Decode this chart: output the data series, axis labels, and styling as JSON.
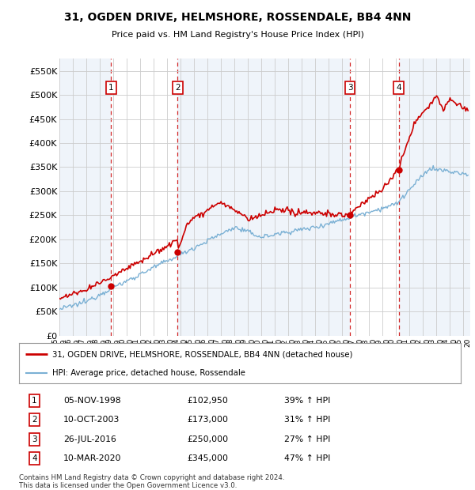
{
  "title": "31, OGDEN DRIVE, HELMSHORE, ROSSENDALE, BB4 4NN",
  "subtitle": "Price paid vs. HM Land Registry's House Price Index (HPI)",
  "ylim": [
    0,
    575000
  ],
  "yticks": [
    0,
    50000,
    100000,
    150000,
    200000,
    250000,
    300000,
    350000,
    400000,
    450000,
    500000,
    550000
  ],
  "xlim_start": 1995.0,
  "xlim_end": 2025.5,
  "background_color": "#ffffff",
  "grid_color": "#cccccc",
  "sale_dates_num": [
    1998.84,
    2003.78,
    2016.57,
    2020.19
  ],
  "sale_prices": [
    102950,
    173000,
    250000,
    345000
  ],
  "sale_labels": [
    "1",
    "2",
    "3",
    "4"
  ],
  "table_rows": [
    {
      "num": "1",
      "date": "05-NOV-1998",
      "price": "£102,950",
      "hpi": "39% ↑ HPI"
    },
    {
      "num": "2",
      "date": "10-OCT-2003",
      "price": "£173,000",
      "hpi": "31% ↑ HPI"
    },
    {
      "num": "3",
      "date": "26-JUL-2016",
      "price": "£250,000",
      "hpi": "27% ↑ HPI"
    },
    {
      "num": "4",
      "date": "10-MAR-2020",
      "price": "£345,000",
      "hpi": "47% ↑ HPI"
    }
  ],
  "legend_label_red": "31, OGDEN DRIVE, HELMSHORE, ROSSENDALE, BB4 4NN (detached house)",
  "legend_label_blue": "HPI: Average price, detached house, Rossendale",
  "footer": "Contains HM Land Registry data © Crown copyright and database right 2024.\nThis data is licensed under the Open Government Licence v3.0.",
  "red_color": "#cc0000",
  "blue_color": "#7ab0d4",
  "fill_color": "#ddeeff",
  "vline_color": "#cc0000",
  "box_color": "#cc0000",
  "shading_color": "#dde8f5"
}
